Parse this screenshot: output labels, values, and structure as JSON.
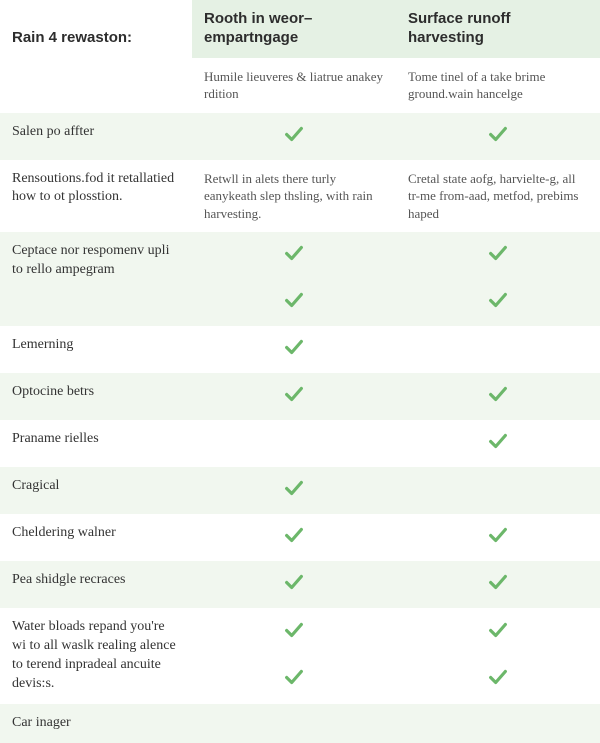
{
  "colors": {
    "header_bg_a": "#e5f1e4",
    "header_bg_b": "#e5f1e4",
    "stripe_a": "#f1f7ef",
    "stripe_b": "#ffffff",
    "check_color": "#6cb76a",
    "text_primary": "#2d2d2d",
    "text_body": "#333333",
    "text_muted": "#555555"
  },
  "typography": {
    "header_font": "sans-serif",
    "body_font": "serif",
    "header_size_pt": 11,
    "label_size_pt": 10,
    "desc_size_pt": 9
  },
  "check_icon": {
    "width": 22,
    "stroke_width": 3.5
  },
  "table": {
    "corner_label": "Rain 4 rewaston:",
    "headers": [
      "Rooth in weor– empartngage",
      "Surface runoff harvesting"
    ],
    "sub_descriptions": [
      "Humile lieuveres & liatrue anakey rdition",
      "Tome tinel of a take brime ground.wain hancelge"
    ],
    "rows": [
      {
        "label": "Salen po affter",
        "cells": [
          "check",
          "check"
        ]
      },
      {
        "label": "Rensoutions.fod it retallatied how to ot plosstion.",
        "cells": [
          "Retwll in alets there turly eanykeath slep thsling, with rain harvesting.",
          "Cretal state aofg, harvielte-g, all tr-me from-aad, metfod, prebims haped"
        ]
      },
      {
        "label": "Ceptace nor respomenv upli to rello ampegram",
        "multi_checks": [
          [
            true,
            true
          ],
          [
            true,
            true
          ]
        ]
      },
      {
        "label": "Lemerning",
        "cells": [
          "check",
          ""
        ]
      },
      {
        "label": "Optocine betrs",
        "cells": [
          "check",
          "check"
        ]
      },
      {
        "label": "Praname rielles",
        "cells": [
          "",
          "check"
        ]
      },
      {
        "label": "Cragical",
        "cells": [
          "check",
          ""
        ]
      },
      {
        "label": "Cheldering walner",
        "cells": [
          "check",
          "check"
        ]
      },
      {
        "label": "Pea shidgle recraces",
        "cells": [
          "check",
          "check"
        ]
      },
      {
        "label": "Water bloads repand you're wi to all waslk realing alence to terend inpradeal ancuite devis:s.",
        "multi_checks": [
          [
            true,
            true
          ],
          [
            true,
            true
          ]
        ]
      },
      {
        "label": "Car inager",
        "cells": [
          "",
          ""
        ]
      }
    ]
  }
}
